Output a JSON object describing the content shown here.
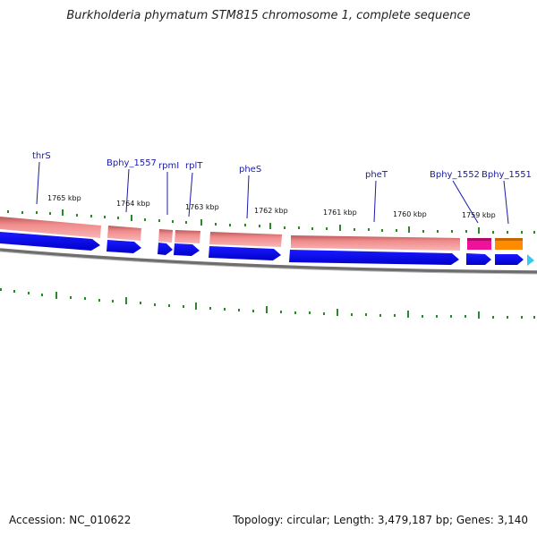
{
  "title": "Burkholderia phymatum STM815 chromosome 1, complete sequence",
  "footer": {
    "accession": "Accession: NC_010622",
    "summary": "Topology: circular; Length: 3,479,187 bp; Genes: 3,140"
  },
  "colors": {
    "gene_forward": "#0000ee",
    "rna_band": "#f08a8a",
    "pink_feature": "#ee1199",
    "orange_feature": "#ff8c00",
    "cyan_feature": "#33ccee",
    "tick": "#2a8a2a",
    "label": "#1a1aa6"
  },
  "kbp_marks": [
    "1765 kbp",
    "1764 kbp",
    "1763 kbp",
    "1762 kbp",
    "1761 kbp",
    "1760 kbp",
    "1759 kbp"
  ],
  "gene_labels": [
    "thrS",
    "Bphy_1557",
    "rpmI",
    "rplT",
    "pheS",
    "pheT",
    "Bphy_1552",
    "Bphy_1551"
  ]
}
